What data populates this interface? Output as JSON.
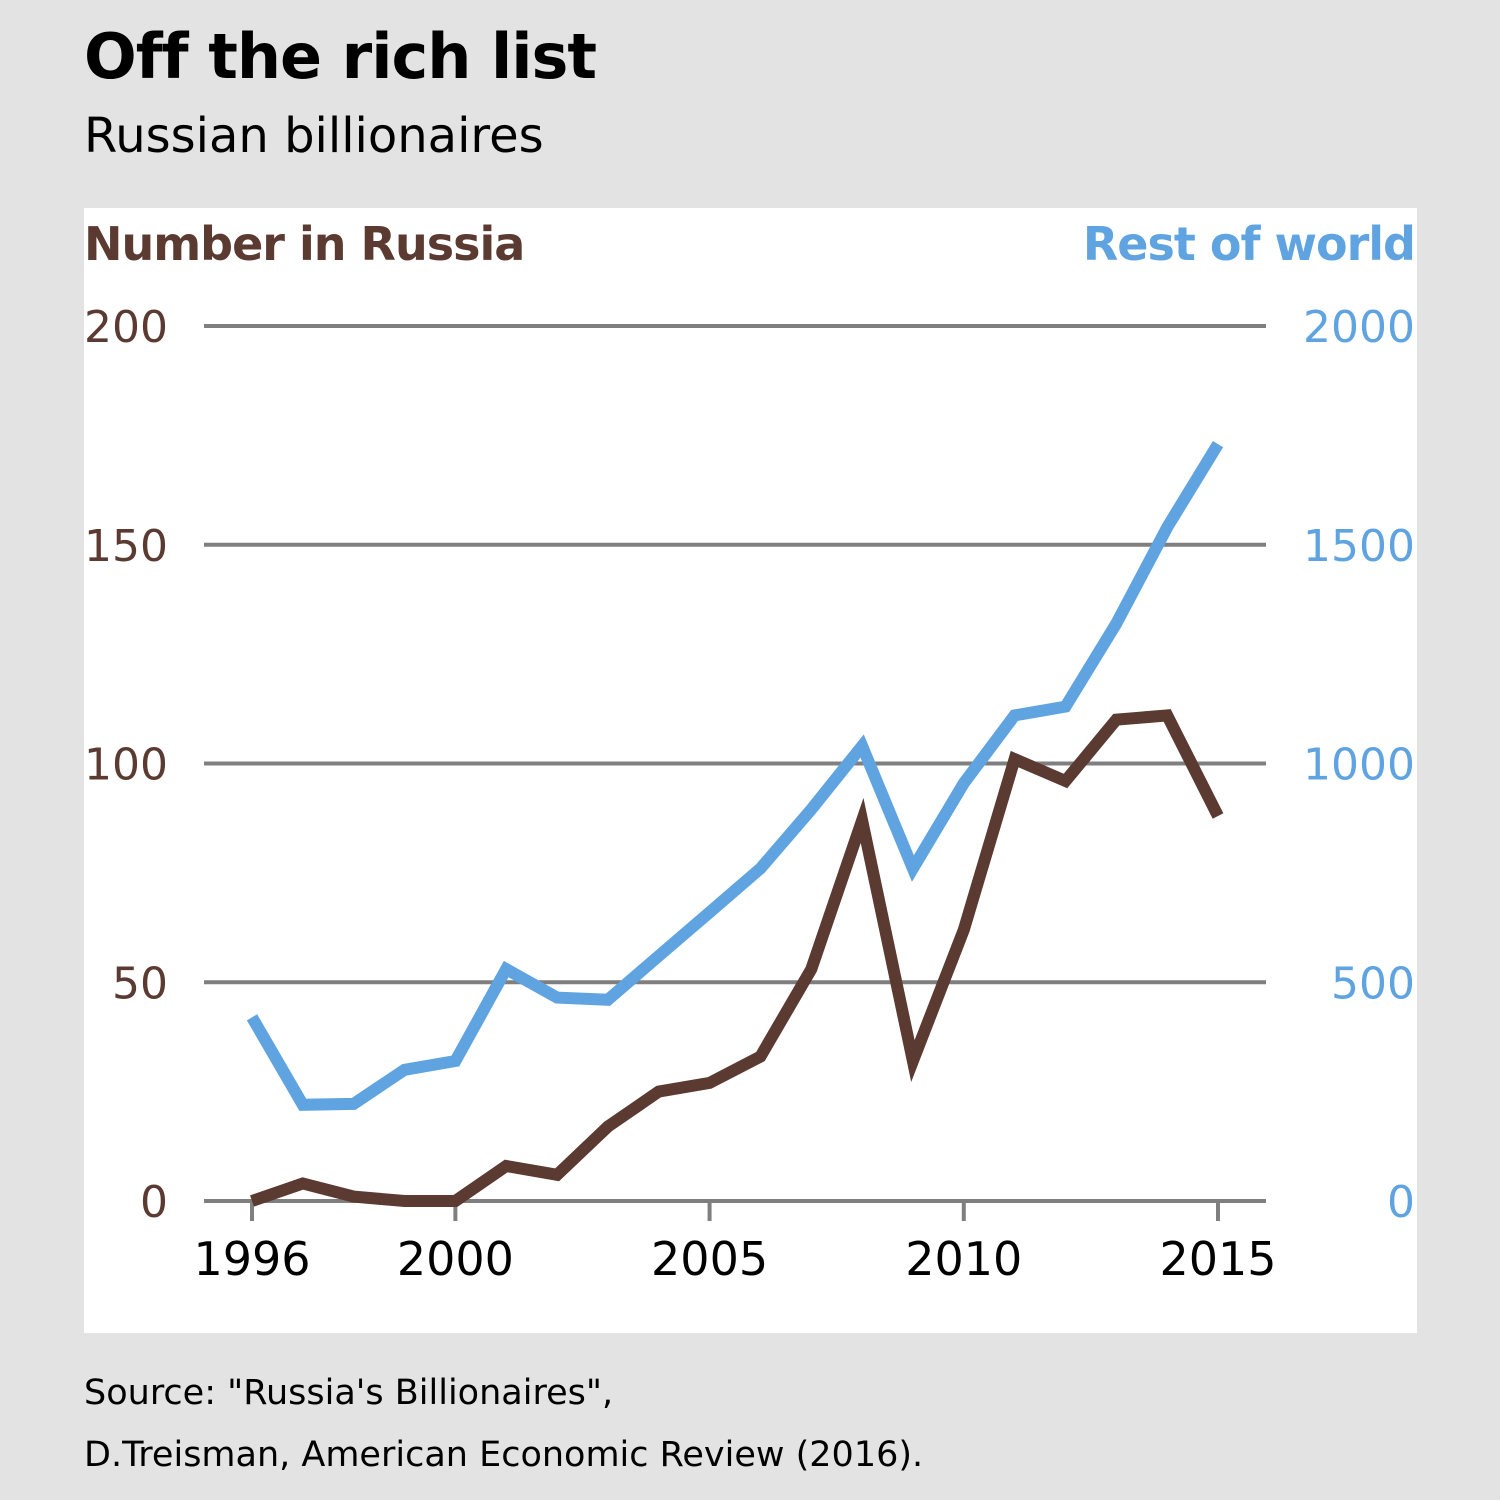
{
  "title": "Off the rich list",
  "subtitle": "Russian billionaires",
  "source": {
    "line1": "Source: \"Russia's Billionaires\",",
    "line2": "D.Treisman, American Economic Review (2016)."
  },
  "colors": {
    "russia": "#5b3a31",
    "world": "#5fa4e0",
    "grid": "#7f7f7f",
    "panel": "#ffffff",
    "background": "#e3e3e3"
  },
  "chart_data": {
    "type": "line",
    "title": "Off the rich list",
    "subtitle": "Russian billionaires",
    "left_axis_label": "Number in Russia",
    "right_axis_label": "Rest of world",
    "x": [
      1996,
      1997,
      1998,
      1999,
      2000,
      2001,
      2002,
      2003,
      2004,
      2005,
      2006,
      2007,
      2008,
      2009,
      2010,
      2011,
      2012,
      2013,
      2014,
      2015
    ],
    "xlim": [
      1996,
      2015
    ],
    "x_ticks": [
      "1996",
      "2000",
      "2005",
      "2010",
      "2015"
    ],
    "x_tick_values": [
      1996,
      2000,
      2005,
      2010,
      2015
    ],
    "ylim_left": [
      0,
      200
    ],
    "y_ticks_left": [
      "0",
      "50",
      "100",
      "150",
      "200"
    ],
    "ylim_right": [
      0,
      2000
    ],
    "y_ticks_right": [
      "0",
      "500",
      "1000",
      "1500",
      "2000"
    ],
    "grid": true,
    "series": [
      {
        "name": "Number in Russia",
        "axis": "left",
        "values": [
          0,
          4,
          1,
          0,
          0,
          8,
          6,
          17,
          25,
          27,
          33,
          53,
          87,
          32,
          62,
          101,
          96,
          110,
          111,
          88
        ]
      },
      {
        "name": "Rest of world",
        "axis": "right",
        "values": [
          420,
          220,
          222,
          300,
          320,
          530,
          465,
          460,
          560,
          660,
          760,
          895,
          1040,
          760,
          955,
          1110,
          1130,
          1320,
          1540,
          1730
        ]
      }
    ]
  }
}
